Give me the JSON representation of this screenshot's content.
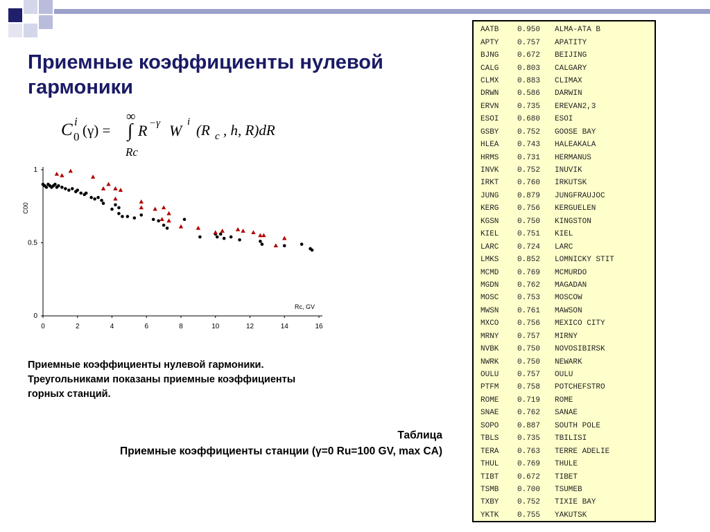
{
  "slide": {
    "title": "Приемные коэффициенты нулевой гармоники",
    "formula": {
      "c": "C",
      "c_sup": "i",
      "c_sub": "0",
      "gamma_arg": "(γ) =",
      "upper_limit": "∞",
      "integral": "∫",
      "lower_limit": "Rc",
      "r": "R",
      "r_sup": "−γ",
      "w": "W",
      "w_sup": "i",
      "args_open": "(R",
      "args_sub": "c",
      "args_rest": ", h, R)dR"
    },
    "caption": "Приемные коэффициенты нулевой гармоники. Треугольниками показаны приемные коэффициенты горных станций.",
    "table_caption_title": "Таблица",
    "table_caption_text": "Приемные коэффициенты станции (γ=0 Ru=100 GV, max CA)"
  },
  "chart_data": {
    "type": "scatter",
    "ylabel": "C00",
    "xlabel": "Rc, GV",
    "xlim": [
      0,
      16
    ],
    "ylim": [
      0,
      1
    ],
    "x_ticks": [
      "0",
      "2",
      "4",
      "6",
      "8",
      "10",
      "12",
      "14",
      "16"
    ],
    "y_ticks": [
      "0",
      "0.5",
      "1"
    ],
    "grid": false,
    "series": [
      {
        "marker": "circle",
        "color": "#000000",
        "points": [
          [
            0.0,
            0.9
          ],
          [
            0.1,
            0.89
          ],
          [
            0.2,
            0.88
          ],
          [
            0.3,
            0.9
          ],
          [
            0.4,
            0.89
          ],
          [
            0.5,
            0.88
          ],
          [
            0.6,
            0.89
          ],
          [
            0.7,
            0.9
          ],
          [
            0.8,
            0.88
          ],
          [
            0.9,
            0.89
          ],
          [
            1.1,
            0.88
          ],
          [
            1.3,
            0.87
          ],
          [
            1.5,
            0.86
          ],
          [
            1.7,
            0.87
          ],
          [
            1.9,
            0.85
          ],
          [
            2.0,
            0.86
          ],
          [
            2.2,
            0.84
          ],
          [
            2.4,
            0.83
          ],
          [
            2.5,
            0.84
          ],
          [
            2.8,
            0.81
          ],
          [
            3.0,
            0.8
          ],
          [
            3.2,
            0.81
          ],
          [
            3.4,
            0.79
          ],
          [
            3.5,
            0.77
          ],
          [
            4.0,
            0.73
          ],
          [
            4.2,
            0.76
          ],
          [
            4.4,
            0.74
          ],
          [
            4.4,
            0.7
          ],
          [
            4.6,
            0.68
          ],
          [
            4.9,
            0.68
          ],
          [
            5.3,
            0.67
          ],
          [
            5.7,
            0.69
          ],
          [
            6.4,
            0.66
          ],
          [
            6.7,
            0.65
          ],
          [
            7.0,
            0.62
          ],
          [
            7.2,
            0.6
          ],
          [
            8.2,
            0.66
          ],
          [
            9.1,
            0.54
          ],
          [
            10.0,
            0.56
          ],
          [
            10.1,
            0.54
          ],
          [
            10.3,
            0.56
          ],
          [
            10.5,
            0.53
          ],
          [
            10.9,
            0.54
          ],
          [
            11.4,
            0.52
          ],
          [
            12.6,
            0.51
          ],
          [
            12.7,
            0.49
          ],
          [
            14.0,
            0.48
          ],
          [
            15.0,
            0.49
          ],
          [
            15.5,
            0.46
          ],
          [
            15.6,
            0.45
          ]
        ]
      },
      {
        "marker": "triangle",
        "color": "#b00000",
        "points": [
          [
            0.8,
            0.97
          ],
          [
            1.1,
            0.96
          ],
          [
            1.6,
            0.99
          ],
          [
            2.9,
            0.95
          ],
          [
            3.5,
            0.87
          ],
          [
            3.8,
            0.9
          ],
          [
            4.2,
            0.87
          ],
          [
            4.5,
            0.86
          ],
          [
            4.2,
            0.8
          ],
          [
            5.7,
            0.78
          ],
          [
            5.7,
            0.74
          ],
          [
            6.5,
            0.73
          ],
          [
            6.9,
            0.66
          ],
          [
            7.0,
            0.74
          ],
          [
            7.3,
            0.7
          ],
          [
            7.3,
            0.65
          ],
          [
            8.0,
            0.61
          ],
          [
            9.0,
            0.6
          ],
          [
            10.0,
            0.57
          ],
          [
            10.4,
            0.58
          ],
          [
            11.3,
            0.59
          ],
          [
            11.6,
            0.58
          ],
          [
            12.2,
            0.57
          ],
          [
            12.6,
            0.55
          ],
          [
            12.8,
            0.55
          ],
          [
            13.5,
            0.48
          ],
          [
            14.0,
            0.53
          ]
        ]
      }
    ]
  },
  "stations": [
    {
      "code": "AATB",
      "coef": "0.950",
      "name": "ALMA-ATA B"
    },
    {
      "code": "APTY",
      "coef": "0.757",
      "name": "APATITY"
    },
    {
      "code": "BJNG",
      "coef": "0.672",
      "name": "BEIJING"
    },
    {
      "code": "CALG",
      "coef": "0.803",
      "name": "CALGARY"
    },
    {
      "code": "CLMX",
      "coef": "0.883",
      "name": "CLIMAX"
    },
    {
      "code": "DRWN",
      "coef": "0.586",
      "name": "DARWIN"
    },
    {
      "code": "ERVN",
      "coef": "0.735",
      "name": "EREVAN2,3"
    },
    {
      "code": "ESOI",
      "coef": "0.680",
      "name": "ESOI"
    },
    {
      "code": "GSBY",
      "coef": "0.752",
      "name": "GOOSE BAY"
    },
    {
      "code": "HLEA",
      "coef": "0.743",
      "name": "HALEAKALA"
    },
    {
      "code": "HRMS",
      "coef": "0.731",
      "name": "HERMANUS"
    },
    {
      "code": "INVK",
      "coef": "0.752",
      "name": "INUVIK"
    },
    {
      "code": "IRKT",
      "coef": "0.760",
      "name": "IRKUTSK"
    },
    {
      "code": "JUNG",
      "coef": "0.879",
      "name": "JUNGFRAUJOC"
    },
    {
      "code": "KERG",
      "coef": "0.756",
      "name": "KERGUELEN"
    },
    {
      "code": "KGSN",
      "coef": "0.750",
      "name": "KINGSTON"
    },
    {
      "code": "KIEL",
      "coef": "0.751",
      "name": "KIEL"
    },
    {
      "code": "LARC",
      "coef": "0.724",
      "name": "LARC"
    },
    {
      "code": "LMKS",
      "coef": "0.852",
      "name": "LOMNICKY STIT"
    },
    {
      "code": "MCMD",
      "coef": "0.769",
      "name": "MCMURDO"
    },
    {
      "code": "MGDN",
      "coef": "0.762",
      "name": "MAGADAN"
    },
    {
      "code": "MOSC",
      "coef": "0.753",
      "name": "MOSCOW"
    },
    {
      "code": "MWSN",
      "coef": "0.761",
      "name": "MAWSON"
    },
    {
      "code": "MXCO",
      "coef": "0.756",
      "name": "MEXICO CITY"
    },
    {
      "code": "MRNY",
      "coef": "0.757",
      "name": "MIRNY"
    },
    {
      "code": "NVBK",
      "coef": "0.750",
      "name": "NOVOSIBIRSK"
    },
    {
      "code": "NWRK",
      "coef": "0.750",
      "name": "NEWARK"
    },
    {
      "code": "OULU",
      "coef": "0.757",
      "name": "OULU"
    },
    {
      "code": "PTFM",
      "coef": "0.758",
      "name": "POTCHEFSTRO"
    },
    {
      "code": "ROME",
      "coef": "0.719",
      "name": "ROME"
    },
    {
      "code": "SNAE",
      "coef": "0.762",
      "name": "SANAE"
    },
    {
      "code": "SOPO",
      "coef": "0.887",
      "name": "SOUTH POLE"
    },
    {
      "code": "TBLS",
      "coef": "0.735",
      "name": "TBILISI"
    },
    {
      "code": "TERA",
      "coef": "0.763",
      "name": "TERRE ADELIE"
    },
    {
      "code": "THUL",
      "coef": "0.769",
      "name": "THULE"
    },
    {
      "code": "TIBT",
      "coef": "0.672",
      "name": "TIBET"
    },
    {
      "code": "TSMB",
      "coef": "0.700",
      "name": "TSUMEB"
    },
    {
      "code": "TXBY",
      "coef": "0.752",
      "name": "TIXIE BAY"
    },
    {
      "code": "YKTK",
      "coef": "0.755",
      "name": "YAKUTSK"
    }
  ]
}
